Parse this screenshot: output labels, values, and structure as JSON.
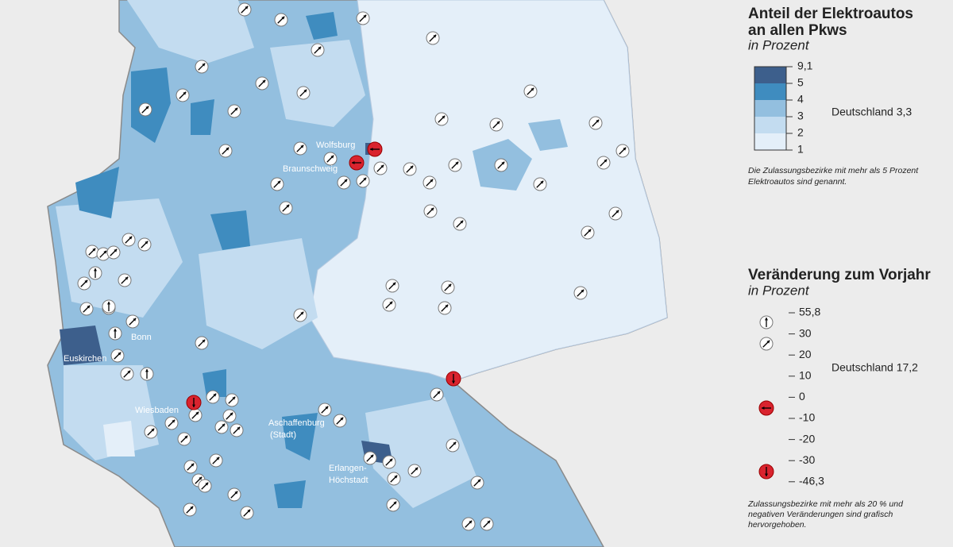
{
  "map_labels": [
    "Wolfsburg",
    "Braunschweig",
    "Bonn",
    "Euskirchen",
    "Wiesbaden",
    "Aschaffenburg",
    "(Stadt)",
    "Erlangen-",
    "Höchstadt"
  ],
  "legend_share": {
    "title_lines": [
      "Anteil der Elektroautos",
      "an allen Pkws"
    ],
    "unit": "in Prozent",
    "scale": [
      "9,1",
      "5",
      "4",
      "3",
      "2",
      "1"
    ],
    "national": "Deutschland 3,3",
    "note_lines": [
      "Die Zulassungsbezirke mit mehr als 5 Prozent",
      "Elektroautos sind genannt."
    ]
  },
  "legend_change": {
    "title": "Veränderung zum Vorjahr",
    "unit": "in Prozent",
    "scale": [
      "55,8",
      "30",
      "20",
      "10",
      "0",
      "-10",
      "-20",
      "-30",
      "-46,3"
    ],
    "national": "Deutschland 17,2",
    "note_lines": [
      "Zulassungsbezirke mit mehr als 20 % und",
      "negativen Veränderungen sind grafisch",
      "hervorgehoben."
    ]
  }
}
